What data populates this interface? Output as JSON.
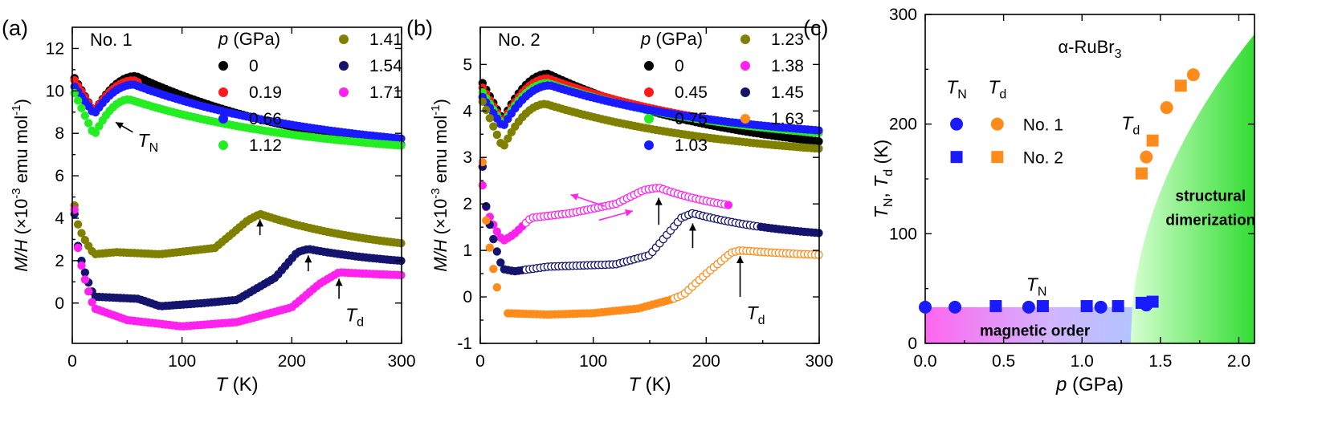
{
  "chart_data": [
    {
      "type": "scatter",
      "panel_label": "(a)",
      "sample_label": "No. 1",
      "title": "",
      "xlabel_main": "T",
      "xlabel_unit": " (K)",
      "ylabel_main": "M/H",
      "ylabel_unit": "(×10",
      "ylabel_exp": "-3",
      "ylabel_rest": " emu mol",
      "ylabel_exp2": "-1",
      "ylabel_close": ")",
      "xlim": [
        0,
        300
      ],
      "ylim": [
        -1.9,
        13
      ],
      "xticks": [
        0,
        100,
        200,
        300
      ],
      "xtick_labels": [
        "0",
        "100",
        "200",
        "300"
      ],
      "yticks": [
        0,
        2,
        4,
        6,
        8,
        10,
        12
      ],
      "ytick_labels": [
        "0",
        "2",
        "4",
        "6",
        "8",
        "10",
        "12"
      ],
      "legend_title_main": "p",
      "legend_title_unit": " (GPa)",
      "series": [
        {
          "name": "0",
          "color": "#000000",
          "kind": "afm",
          "params": {
            "y0": 10.6,
            "a": 9.0,
            "c": 10.7,
            "tm": 58,
            "b": 6.3,
            "ta": 330,
            "tmin": 2,
            "tmax": 300
          }
        },
        {
          "name": "0.19",
          "color": "#ff1a1a",
          "kind": "afm",
          "params": {
            "y0": 10.5,
            "a": 9.0,
            "c": 10.5,
            "tm": 56,
            "b": 6.2,
            "ta": 330,
            "tmin": 2,
            "tmax": 60
          }
        },
        {
          "name": "0.66",
          "color": "#1a1aff",
          "kind": "afm",
          "params": {
            "y0": 10.2,
            "a": 8.9,
            "c": 10.3,
            "tm": 56,
            "b": 6.9,
            "ta": 320,
            "tmin": 2,
            "tmax": 300
          }
        },
        {
          "name": "1.12",
          "color": "#22ee22",
          "kind": "afm",
          "params": {
            "y0": 9.9,
            "a": 7.9,
            "c": 9.6,
            "tm": 52,
            "b": 6.8,
            "ta": 300,
            "tmin": 2,
            "tmax": 300
          }
        },
        {
          "name": "1.41",
          "color": "#808000",
          "kind": "dim",
          "params": {
            "a": 4.6,
            "b": 2.3,
            "tmin": 2,
            "td": 171,
            "ypk": 4.2,
            "yend": 2.1,
            "tau": 200,
            "tmax": 300,
            "flat": [
              [
                20,
                2.3
              ],
              [
                40,
                2.4
              ],
              [
                80,
                2.3
              ],
              [
                130,
                2.6
              ],
              [
                160,
                3.9
              ]
            ]
          }
        },
        {
          "name": "1.54",
          "color": "#14146e",
          "kind": "dim",
          "params": {
            "a": 4.2,
            "b": 0.3,
            "tmin": 2,
            "td": 215,
            "ypk": 2.55,
            "yend": 1.6,
            "tau": 160,
            "tmax": 300,
            "flat": [
              [
                20,
                0.3
              ],
              [
                60,
                0.2
              ],
              [
                80,
                -0.15
              ],
              [
                120,
                0.0
              ],
              [
                150,
                0.15
              ],
              [
                185,
                1.2
              ],
              [
                205,
                2.4
              ]
            ]
          }
        },
        {
          "name": "1.71",
          "color": "#ff22ee",
          "kind": "dim",
          "params": {
            "a": 4.4,
            "b": -0.3,
            "tmin": 2,
            "td": 243,
            "ypk": 1.45,
            "yend": 1.1,
            "tau": 200,
            "tmax": 300,
            "gap": [
              22,
              22
            ],
            "flat": [
              [
                20,
                -0.25
              ],
              [
                50,
                -0.8
              ],
              [
                100,
                -1.1
              ],
              [
                150,
                -0.9
              ],
              [
                200,
                -0.2
              ],
              [
                225,
                0.9
              ]
            ]
          }
        }
      ],
      "annotations": [
        {
          "text": "T",
          "sub": "N",
          "target": [
            38,
            8.6
          ],
          "label": [
            45,
            7.9
          ],
          "dir": "diag"
        },
        {
          "text": "",
          "sub": "",
          "target": [
            171,
            4.1
          ],
          "label": [
            171,
            3.2
          ],
          "dir": "up"
        },
        {
          "text": "",
          "sub": "",
          "target": [
            215,
            2.4
          ],
          "label": [
            215,
            1.5
          ],
          "dir": "up"
        },
        {
          "text": "T",
          "sub": "d",
          "target": [
            243,
            1.3
          ],
          "label": [
            243,
            0.2
          ],
          "dir": "up"
        }
      ]
    },
    {
      "type": "scatter",
      "panel_label": "(b)",
      "sample_label": "No. 2",
      "title": "",
      "xlabel_main": "T",
      "xlabel_unit": " (K)",
      "ylabel_main": "M/H",
      "ylabel_unit": "(×10",
      "ylabel_exp": "-3",
      "ylabel_rest": " emu mol",
      "ylabel_exp2": "-1",
      "ylabel_close": ")",
      "xlim": [
        0,
        300
      ],
      "ylim": [
        -1,
        5.8
      ],
      "xticks": [
        0,
        100,
        200,
        300
      ],
      "xtick_labels": [
        "0",
        "100",
        "200",
        "300"
      ],
      "yticks": [
        -1,
        0,
        1,
        2,
        3,
        4,
        5
      ],
      "ytick_labels": [
        "-1",
        "0",
        "1",
        "2",
        "3",
        "4",
        "5"
      ],
      "legend_title_main": "p",
      "legend_title_unit": " (GPa)",
      "series": [
        {
          "name": "0",
          "color": "#000000",
          "kind": "afm",
          "params": {
            "y0": 4.6,
            "a": 3.8,
            "c": 4.8,
            "tm": 60,
            "b": 2.9,
            "ta": 300,
            "tmin": 2,
            "tmax": 300
          }
        },
        {
          "name": "0.45",
          "color": "#ff1a1a",
          "kind": "afm",
          "params": {
            "y0": 4.5,
            "a": 3.75,
            "c": 4.7,
            "tm": 60,
            "b": 3.15,
            "ta": 310,
            "tmin": 2,
            "tmax": 300
          }
        },
        {
          "name": "0.75",
          "color": "#22ee22",
          "kind": "afm",
          "params": {
            "y0": 4.4,
            "a": 3.7,
            "c": 4.6,
            "tm": 60,
            "b": 3.2,
            "ta": 300,
            "tmin": 2,
            "tmax": 300
          }
        },
        {
          "name": "1.03",
          "color": "#1a1aff",
          "kind": "afm",
          "params": {
            "y0": 4.3,
            "a": 3.65,
            "c": 4.55,
            "tm": 62,
            "b": 3.3,
            "ta": 290,
            "tmin": 2,
            "tmax": 300
          }
        },
        {
          "name": "1.23",
          "color": "#808000",
          "kind": "afm",
          "params": {
            "y0": 4.2,
            "a": 3.2,
            "c": 4.15,
            "tm": 58,
            "b": 2.9,
            "ta": 300,
            "tmin": 2,
            "tmax": 300
          }
        },
        {
          "name": "1.38",
          "color": "#ff22ee",
          "kind": "dim",
          "params": {
            "a": 2.4,
            "b": 1.2,
            "tmin": 2,
            "td": 158,
            "ypk": 2.35,
            "yend": 1.7,
            "tau": 120,
            "tmax": 220,
            "flat": [
              [
                20,
                1.2
              ],
              [
                30,
                1.35
              ],
              [
                45,
                1.7
              ],
              [
                80,
                1.8
              ],
              [
                120,
                2.0
              ],
              [
                145,
                2.3
              ]
            ]
          }
        },
        {
          "name": "1.45",
          "color": "#14146e",
          "kind": "dim",
          "params": {
            "a": 2.8,
            "b": 0.6,
            "tmin": 2,
            "td": 188,
            "ypk": 1.8,
            "yend": 1.2,
            "tau": 150,
            "tmax": 300,
            "flat": [
              [
                20,
                0.6
              ],
              [
                30,
                0.55
              ],
              [
                60,
                0.65
              ],
              [
                120,
                0.7
              ],
              [
                150,
                0.9
              ],
              [
                178,
                1.7
              ]
            ]
          }
        },
        {
          "name": "1.63",
          "color": "#ff8c1a",
          "kind": "dim",
          "params": {
            "a": 2.9,
            "b": 0.4,
            "tmin": 2,
            "td": 230,
            "ypk": 1.0,
            "yend": 0.8,
            "tau": 180,
            "tmax": 300,
            "gap": [
              16,
              22
            ],
            "flat": [
              [
                22,
                -0.35
              ],
              [
                60,
                -0.38
              ],
              [
                100,
                -0.35
              ],
              [
                140,
                -0.25
              ],
              [
                170,
                -0.05
              ],
              [
                180,
                0.05
              ],
              [
                200,
                0.5
              ],
              [
                222,
                0.95
              ]
            ]
          }
        }
      ],
      "annotations": [
        {
          "text": "",
          "sub": "",
          "target": [
            158,
            2.2
          ],
          "label": [
            158,
            1.55
          ],
          "dir": "up"
        },
        {
          "text": "",
          "sub": "",
          "target": [
            188,
            1.65
          ],
          "label": [
            188,
            1.05
          ],
          "dir": "up"
        },
        {
          "text": "T",
          "sub": "d",
          "target": [
            230,
            0.95
          ],
          "label": [
            230,
            0.0
          ],
          "dir": "up"
        }
      ],
      "sweep_arrows": [
        {
          "from": [
            110,
            1.95
          ],
          "to": [
            80,
            2.2
          ],
          "color": "#ff22ee"
        },
        {
          "from": [
            105,
            1.65
          ],
          "to": [
            135,
            1.85
          ],
          "color": "#ff22ee"
        }
      ]
    },
    {
      "type": "scatter",
      "panel_label": "(c)",
      "title": "α-RuBr",
      "title_sub": "3",
      "xlabel_main": "p",
      "xlabel_unit": " (GPa)",
      "ylabel_a": "T",
      "ylabel_a_sub": "N",
      "ylabel_sep": ", ",
      "ylabel_b": "T",
      "ylabel_b_sub": "d",
      "ylabel_unit": " (K)",
      "xlim": [
        0,
        2.1
      ],
      "ylim": [
        0,
        300
      ],
      "xticks": [
        0,
        0.5,
        1.0,
        1.5,
        2.0
      ],
      "xtick_labels": [
        "0.0",
        "0.5",
        "1.0",
        "1.5",
        "2.0"
      ],
      "yticks": [
        0,
        100,
        200,
        300
      ],
      "ytick_labels": [
        "0",
        "100",
        "200",
        "300"
      ],
      "regions": [
        {
          "label": "magnetic order",
          "pmax": 1.45,
          "tmax": 33
        },
        {
          "label_line1": "structural",
          "label_line2": "dimerization",
          "pc": 1.31
        }
      ],
      "legend_headers": [
        {
          "main": "T",
          "sub": "N"
        },
        {
          "main": "T",
          "sub": "d"
        }
      ],
      "legend_rows": [
        "No. 1",
        "No. 2"
      ],
      "series": [
        {
          "name": "T_N No. 1",
          "marker": "circle",
          "color": "#1a1aff",
          "x": [
            0,
            0.19,
            0.66,
            1.12,
            1.41
          ],
          "y": [
            33,
            33,
            33,
            33,
            35
          ]
        },
        {
          "name": "T_N No. 2",
          "marker": "square",
          "color": "#1a1aff",
          "x": [
            0.45,
            0.75,
            1.03,
            1.23,
            1.38,
            1.45
          ],
          "y": [
            34,
            34,
            34,
            34,
            37,
            38
          ]
        },
        {
          "name": "T_d No. 1",
          "marker": "circle",
          "color": "#ff8c1a",
          "x": [
            1.41,
            1.54,
            1.71
          ],
          "y": [
            170,
            215,
            245
          ]
        },
        {
          "name": "T_d No. 2",
          "marker": "square",
          "color": "#ff8c1a",
          "x": [
            1.38,
            1.45,
            1.63
          ],
          "y": [
            155,
            185,
            235
          ]
        }
      ],
      "point_labels": [
        {
          "main": "T",
          "sub": "N",
          "x": 0.71,
          "y": 48
        },
        {
          "main": "T",
          "sub": "d",
          "x": 1.31,
          "y": 195
        }
      ]
    }
  ]
}
